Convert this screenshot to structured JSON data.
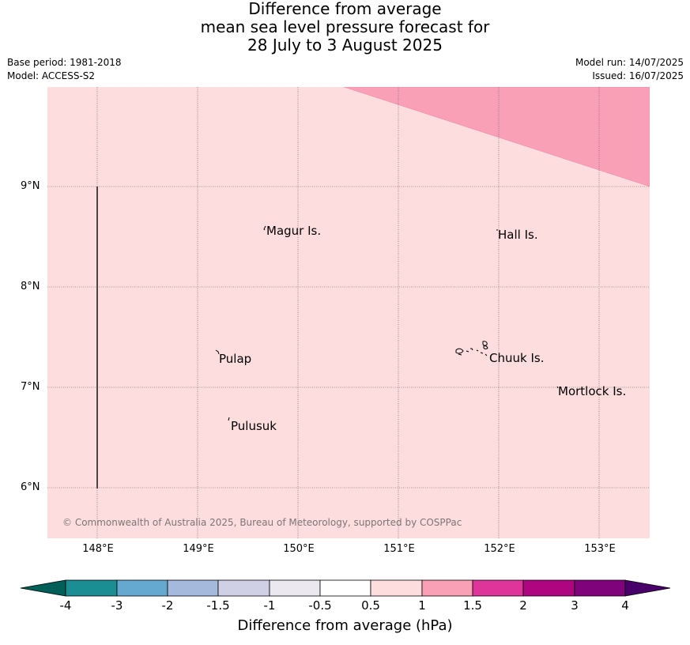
{
  "title": {
    "line1": "Difference from average",
    "line2": "mean sea level pressure forecast for",
    "line3": "28 July to 3 August 2025"
  },
  "meta": {
    "base_period": "Base period: 1981-2018",
    "model": "Model: ACCESS-S2",
    "model_run": "Model run: 14/07/2025",
    "issued": "Issued: 16/07/2025"
  },
  "map": {
    "lat_labels": [
      "9°N",
      "8°N",
      "7°N",
      "6°N"
    ],
    "lon_labels": [
      "148°E",
      "149°E",
      "150°E",
      "151°E",
      "152°E",
      "153°E"
    ],
    "background_color": "#fddddd",
    "high_anomaly_color": "#f9a0b7",
    "places": [
      "Magur Is.",
      "Hall Is.",
      "Pulap",
      "Chuuk Is.",
      "Mortlock Is.",
      "Pulusuk"
    ],
    "copyright": "© Commonwealth of Australia 2025, Bureau of Meteorology, supported by COSPPac"
  },
  "colorbar": {
    "ticks": [
      "-4",
      "-3",
      "-2",
      "-1.5",
      "-1",
      "-0.5",
      "0.5",
      "1",
      "1.5",
      "2",
      "3",
      "4"
    ],
    "colors": [
      "#005f57",
      "#1a8e93",
      "#66a9d0",
      "#a5b9dc",
      "#cfcfe5",
      "#ece8f0",
      "#ffffff",
      "#fddddd",
      "#f9a0b7",
      "#df359a",
      "#b00580",
      "#7f047c",
      "#49006a"
    ],
    "label": "Difference from average (hPa)"
  }
}
